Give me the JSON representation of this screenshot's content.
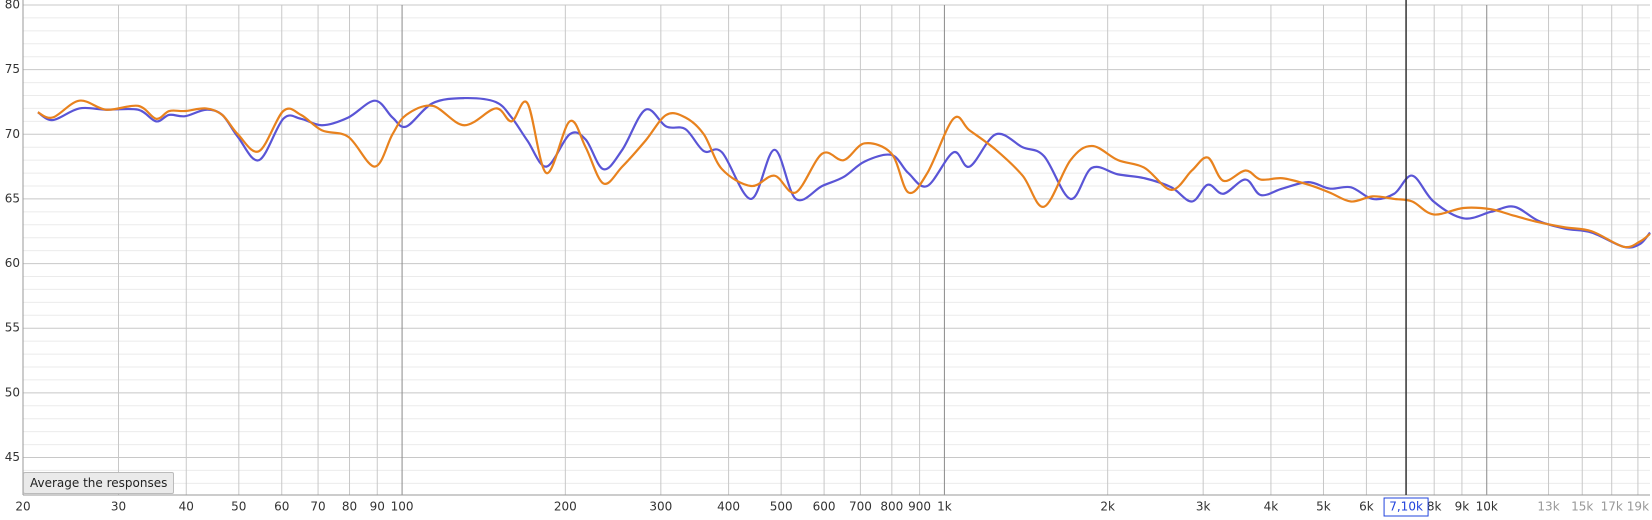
{
  "chart_data": {
    "type": "line",
    "xscale": "log",
    "grid": true,
    "xlim": [
      20,
      20000
    ],
    "ylim": [
      42.1,
      80
    ],
    "yticks": [
      45,
      50,
      55,
      60,
      65,
      70,
      75,
      80
    ],
    "yminorticks": [
      43,
      44,
      46,
      47,
      48,
      49,
      51,
      52,
      53,
      54,
      56,
      57,
      58,
      59,
      61,
      62,
      63,
      64,
      66,
      67,
      68,
      69,
      71,
      72,
      73,
      74,
      76,
      77,
      78,
      79
    ],
    "xticks": [
      20,
      30,
      40,
      50,
      60,
      70,
      80,
      90,
      100,
      200,
      300,
      400,
      500,
      600,
      700,
      800,
      900,
      {
        "value": 1000,
        "label": "1k"
      },
      {
        "value": 2000,
        "label": "2k"
      },
      {
        "value": 3000,
        "label": "3k"
      },
      {
        "value": 4000,
        "label": "4k"
      },
      {
        "value": 5000,
        "label": "5k"
      },
      {
        "value": 6000,
        "label": "6k"
      },
      {
        "value": 8000,
        "label": "8k"
      },
      {
        "value": 9000,
        "label": "9k"
      },
      {
        "value": 10000,
        "label": "10k"
      },
      {
        "value": 13000,
        "label": "13k"
      },
      {
        "value": 15000,
        "label": "15k"
      },
      {
        "value": 17000,
        "label": "17k"
      },
      {
        "value": 19000,
        "label": "19k"
      }
    ],
    "cursor": {
      "value": 7100,
      "label": "7,10k"
    },
    "x": [
      21.3,
      22.7,
      25.4,
      28.5,
      32.6,
      35.2,
      37.2,
      39.8,
      43.5,
      46.6,
      49.8,
      54.5,
      60.4,
      65.1,
      71.2,
      79.6,
      89.1,
      96,
      101.8,
      113.8,
      130.2,
      148.8,
      159.2,
      170.3,
      184.6,
      203.7,
      218,
      235,
      254.7,
      281,
      307,
      333,
      360,
      389,
      440,
      486,
      532,
      595,
      652,
      713,
      799,
      858,
      930,
      1039,
      1113,
      1244,
      1394,
      1527,
      1708,
      1870,
      2090,
      2340,
      2620,
      2860,
      3060,
      3270,
      3590,
      3830,
      4200,
      4690,
      5130,
      5620,
      6160,
      6750,
      7290,
      7980,
      9060,
      10180,
      11230,
      12460,
      13940,
      15610,
      17880,
      19150,
      20000
    ],
    "series": [
      {
        "color": "#5a55d6",
        "values": [
          71.7,
          71.1,
          72.0,
          71.9,
          71.9,
          71.0,
          71.5,
          71.4,
          71.9,
          71.5,
          69.8,
          68.0,
          71.2,
          71.2,
          70.7,
          71.3,
          72.6,
          71.3,
          70.6,
          72.4,
          72.8,
          72.5,
          71.3,
          69.5,
          67.5,
          70.0,
          69.6,
          67.3,
          68.8,
          71.9,
          70.6,
          70.4,
          68.7,
          68.6,
          65.0,
          68.8,
          65.0,
          66.0,
          66.7,
          67.9,
          68.4,
          67.0,
          66.0,
          68.6,
          67.5,
          70.0,
          69.0,
          68.3,
          65.0,
          67.4,
          66.9,
          66.6,
          65.9,
          64.8,
          66.1,
          65.4,
          66.5,
          65.3,
          65.8,
          66.3,
          65.8,
          65.9,
          65.0,
          65.4,
          66.8,
          64.8,
          63.5,
          64.0,
          64.4,
          63.3,
          62.7,
          62.4,
          61.3,
          61.5,
          62.4
        ]
      },
      {
        "color": "#e8821e",
        "values": [
          71.7,
          71.3,
          72.6,
          71.9,
          72.2,
          71.2,
          71.8,
          71.8,
          72.0,
          71.5,
          70.0,
          68.7,
          71.8,
          71.5,
          70.3,
          69.8,
          67.5,
          70.0,
          71.5,
          72.2,
          70.7,
          72.0,
          71.0,
          72.4,
          67.0,
          71.0,
          69.0,
          66.2,
          67.5,
          69.5,
          71.5,
          71.3,
          70.0,
          67.3,
          66.0,
          66.8,
          65.5,
          68.5,
          68.0,
          69.3,
          68.5,
          65.5,
          67.0,
          71.2,
          70.3,
          68.8,
          66.8,
          64.4,
          68.0,
          69.1,
          68.0,
          67.4,
          65.7,
          67.2,
          68.2,
          66.4,
          67.2,
          66.5,
          66.6,
          66.1,
          65.5,
          64.8,
          65.2,
          65.0,
          64.8,
          63.8,
          64.3,
          64.2,
          63.7,
          63.2,
          62.8,
          62.5,
          61.3,
          61.7,
          62.3
        ]
      }
    ]
  },
  "controls": {
    "average_button": "Average the responses"
  }
}
